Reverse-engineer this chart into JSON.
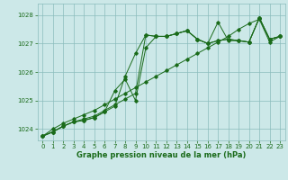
{
  "title": "Graphe pression niveau de la mer (hPa)",
  "background_color": "#cce8e8",
  "grid_color": "#8bbcbc",
  "line_color": "#1a6b1a",
  "xlim": [
    -0.5,
    23.5
  ],
  "ylim": [
    1023.6,
    1028.4
  ],
  "yticks": [
    1024,
    1025,
    1026,
    1027,
    1028
  ],
  "xticks": [
    0,
    1,
    2,
    3,
    4,
    5,
    6,
    7,
    8,
    9,
    10,
    11,
    12,
    13,
    14,
    15,
    16,
    17,
    18,
    19,
    20,
    21,
    22,
    23
  ],
  "series": [
    [
      1023.75,
      1023.9,
      1024.1,
      1024.25,
      1024.35,
      1024.45,
      1024.65,
      1024.85,
      1025.05,
      1025.25,
      1027.3,
      1027.25,
      1027.25,
      1027.35,
      1027.45,
      1027.15,
      1027.0,
      1027.1,
      1027.15,
      1027.1,
      1027.05,
      1027.9,
      1027.15,
      1027.25
    ],
    [
      1023.75,
      1023.9,
      1024.1,
      1024.25,
      1024.3,
      1024.4,
      1024.6,
      1024.8,
      1025.85,
      1026.65,
      1027.3,
      1027.25,
      1027.25,
      1027.35,
      1027.45,
      1027.15,
      1027.0,
      1027.1,
      1027.15,
      1027.1,
      1027.05,
      1027.9,
      1027.15,
      1027.25
    ],
    [
      1023.75,
      1023.9,
      1024.1,
      1024.25,
      1024.3,
      1024.4,
      1024.6,
      1025.35,
      1025.75,
      1025.0,
      1026.85,
      1027.25,
      1027.25,
      1027.35,
      1027.45,
      1027.15,
      1027.0,
      1027.75,
      1027.1,
      1027.1,
      1027.05,
      1027.9,
      1027.15,
      1027.25
    ],
    [
      1023.75,
      1024.0,
      1024.2,
      1024.35,
      1024.5,
      1024.65,
      1024.85,
      1025.05,
      1025.25,
      1025.45,
      1025.65,
      1025.85,
      1026.05,
      1026.25,
      1026.45,
      1026.65,
      1026.85,
      1027.05,
      1027.25,
      1027.5,
      1027.7,
      1027.85,
      1027.05,
      1027.25
    ]
  ]
}
